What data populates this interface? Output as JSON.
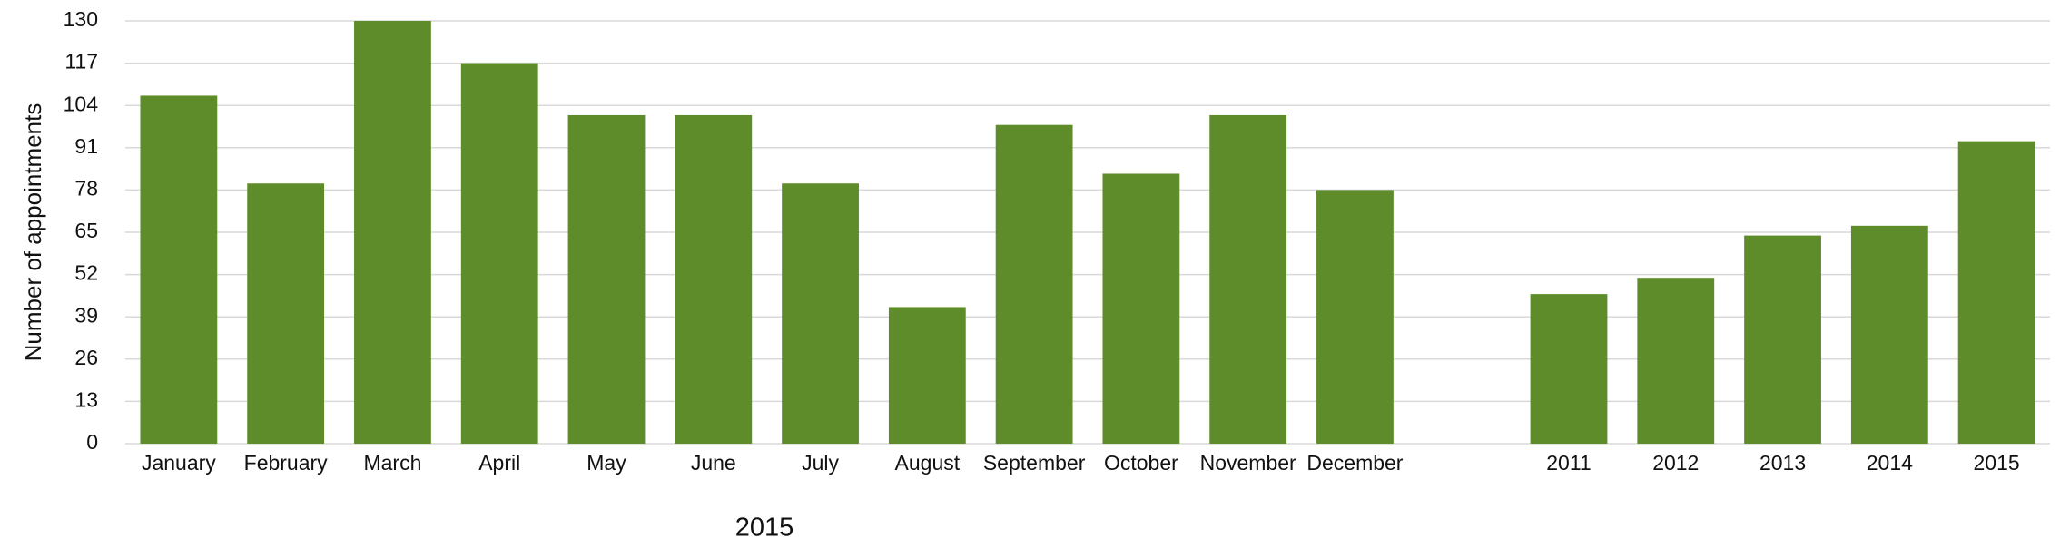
{
  "chart_data": {
    "type": "bar",
    "y_label": "Number of appointments",
    "x_label": "2015",
    "categories": [
      "January",
      "February",
      "March",
      "April",
      "May",
      "June",
      "July",
      "August",
      "September",
      "October",
      "November",
      "December",
      null,
      "2011",
      "2012",
      "2013",
      "2014",
      "2015"
    ],
    "values": [
      107,
      80,
      130,
      117,
      101,
      101,
      80,
      42,
      98,
      83,
      101,
      78,
      null,
      46,
      51,
      64,
      67,
      93
    ],
    "color": "#5e8c2a",
    "ylim": [
      0,
      130
    ],
    "yticks": [
      0,
      13,
      26,
      39,
      52,
      65,
      78,
      91,
      104,
      117,
      130
    ],
    "grid": true
  }
}
